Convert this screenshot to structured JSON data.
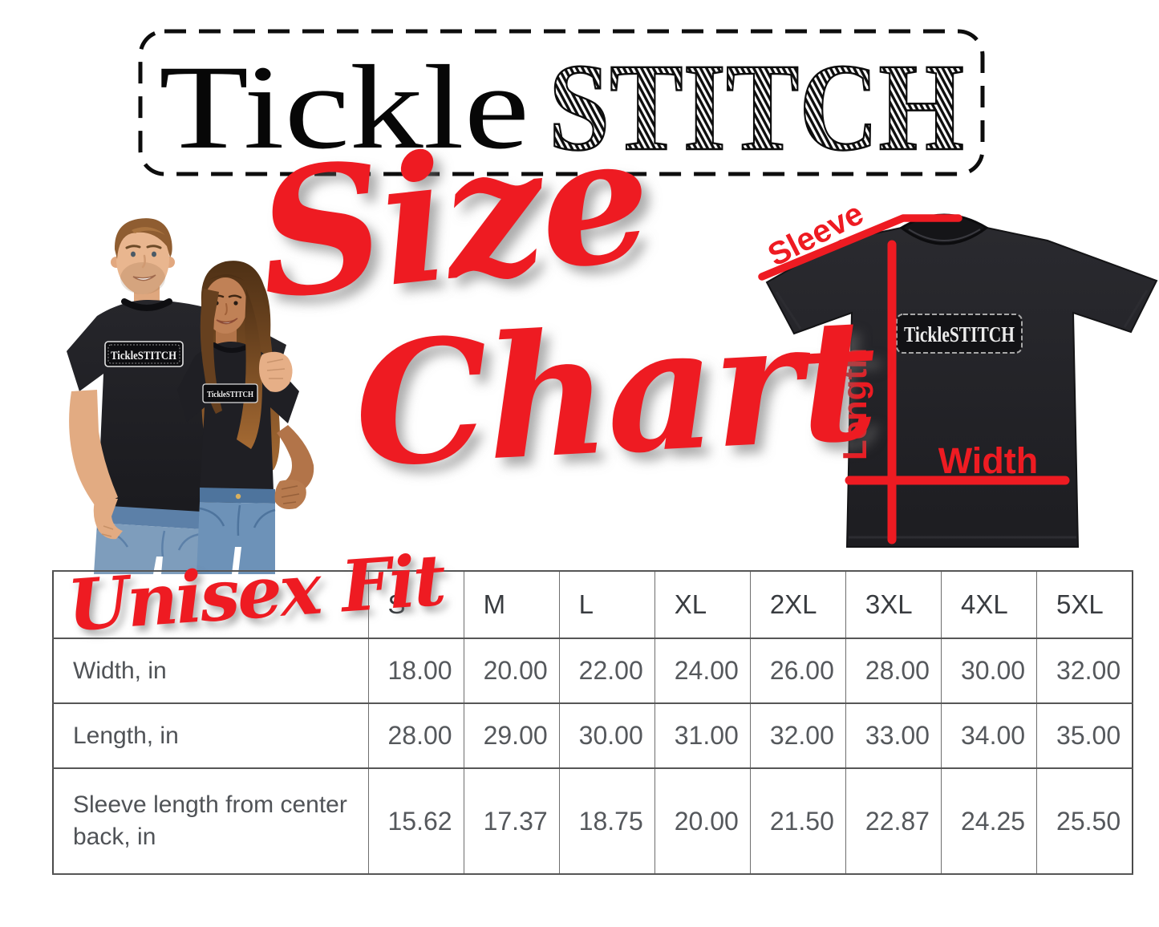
{
  "brand": {
    "name_serif": "Tickle",
    "name_sketch": "STITCH"
  },
  "title": {
    "word1": "Size",
    "word2": "Chart"
  },
  "table_title": "Unisex Fit",
  "diagram": {
    "sleeve_label": "Sleeve",
    "length_label": "Length",
    "width_label": "Width",
    "shirt_logo": "TickleSTITCH"
  },
  "photo": {
    "left_shirt_logo": "TickleSTITCH",
    "right_shirt_logo": "TickleSTITCH"
  },
  "chart_data": {
    "type": "table",
    "title": "Unisex Fit",
    "columns": [
      "S",
      "M",
      "L",
      "XL",
      "2XL",
      "3XL",
      "4XL",
      "5XL"
    ],
    "rows": [
      {
        "label": "Width, in",
        "values": [
          "18.00",
          "20.00",
          "22.00",
          "24.00",
          "26.00",
          "28.00",
          "30.00",
          "32.00"
        ]
      },
      {
        "label": "Length, in",
        "values": [
          "28.00",
          "29.00",
          "30.00",
          "31.00",
          "32.00",
          "33.00",
          "34.00",
          "35.00"
        ]
      },
      {
        "label": "Sleeve length from center back, in",
        "values": [
          "15.62",
          "17.37",
          "18.75",
          "20.00",
          "21.50",
          "22.87",
          "24.25",
          "25.50"
        ]
      }
    ],
    "units": "inches"
  },
  "colors": {
    "accent_red": "#ee1b22",
    "ink": "#0d0d0d",
    "shirt_black": "#222226",
    "table_line": "#565656",
    "header_text": "#393c40",
    "value_text": "#55585c"
  }
}
